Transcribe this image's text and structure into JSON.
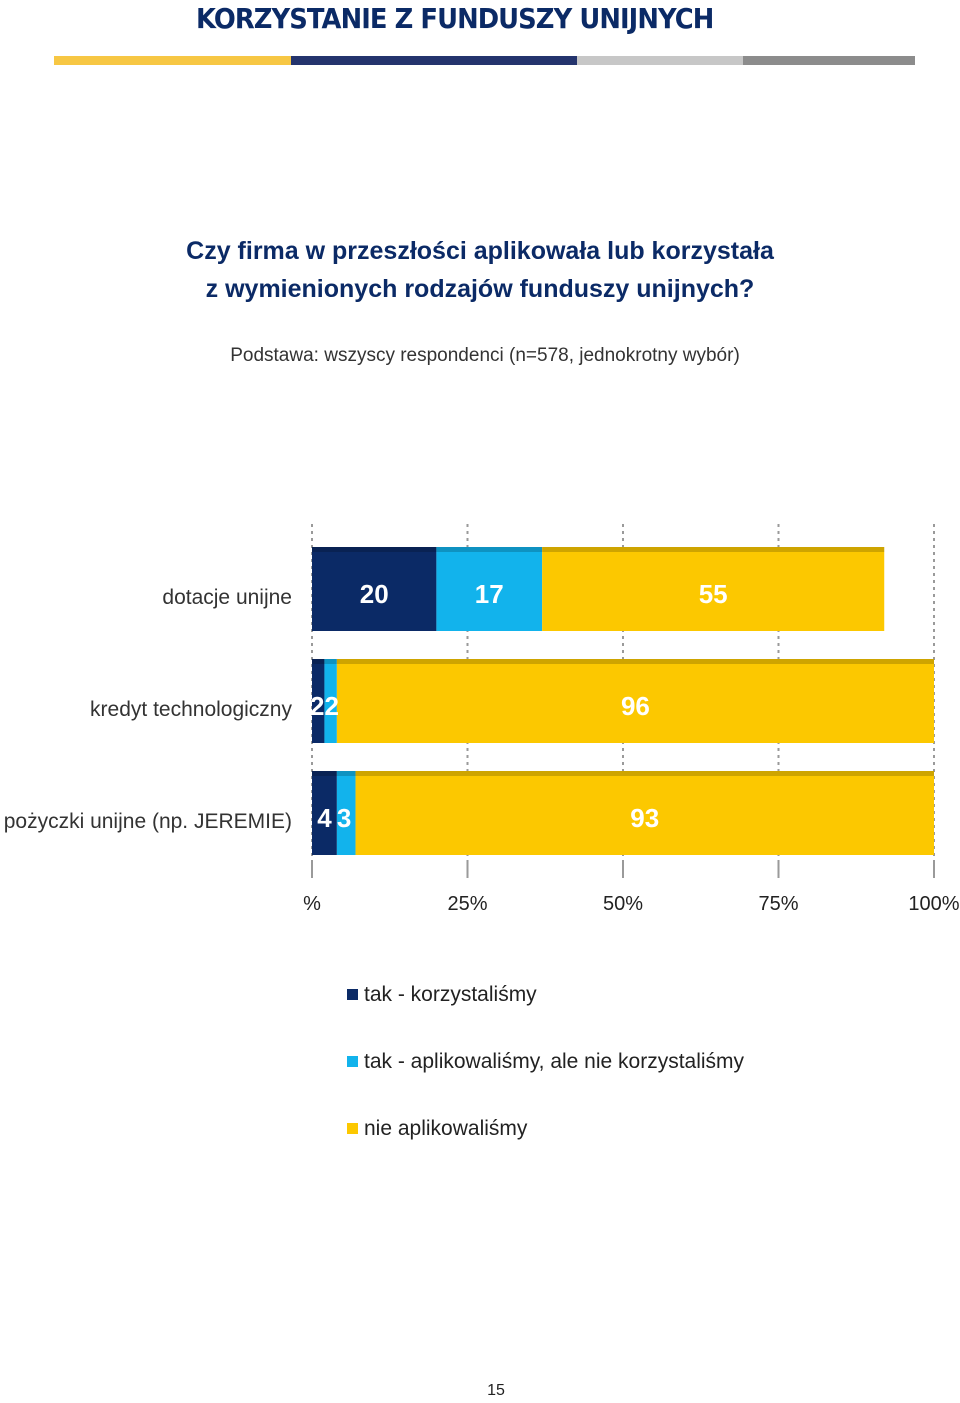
{
  "header": {
    "title": "KORZYSTANIE Z FUNDUSZY UNIJNYCH",
    "rule_colors": [
      "#f7c744",
      "#24346d",
      "#c7c7c7",
      "#8c8c8c"
    ]
  },
  "question": {
    "line1": "Czy firma w przeszłości aplikowała lub korzystała",
    "line2": "z wymienionych rodzajów funduszy unijnych?"
  },
  "basis": "Podstawa: wszyscy respondenci (n=578, jednokrotny wybór)",
  "chart_data": {
    "type": "bar",
    "orientation": "horizontal",
    "stacked": true,
    "categories": [
      "dotacje unijne",
      "kredyt technologiczny",
      "pożyczki unijne (np. JEREMIE)"
    ],
    "series": [
      {
        "name": "tak - korzystaliśmy",
        "color": "#0b2a66",
        "values": [
          20,
          2,
          4
        ]
      },
      {
        "name": "tak - aplikowaliśmy, ale nie korzystaliśmy",
        "color": "#12b3ec",
        "values": [
          17,
          2,
          3
        ]
      },
      {
        "name": "nie aplikowaliśmy",
        "color": "#fcc800",
        "values": [
          55,
          96,
          93
        ]
      }
    ],
    "xlim": [
      0,
      100
    ],
    "x_ticks": [
      0,
      25,
      50,
      75,
      100
    ],
    "x_tick_labels": [
      "%",
      "25%",
      "50%",
      "75%",
      "100%"
    ],
    "grid": true,
    "legend_position": "bottom"
  },
  "footer": {
    "page_number": "15"
  }
}
